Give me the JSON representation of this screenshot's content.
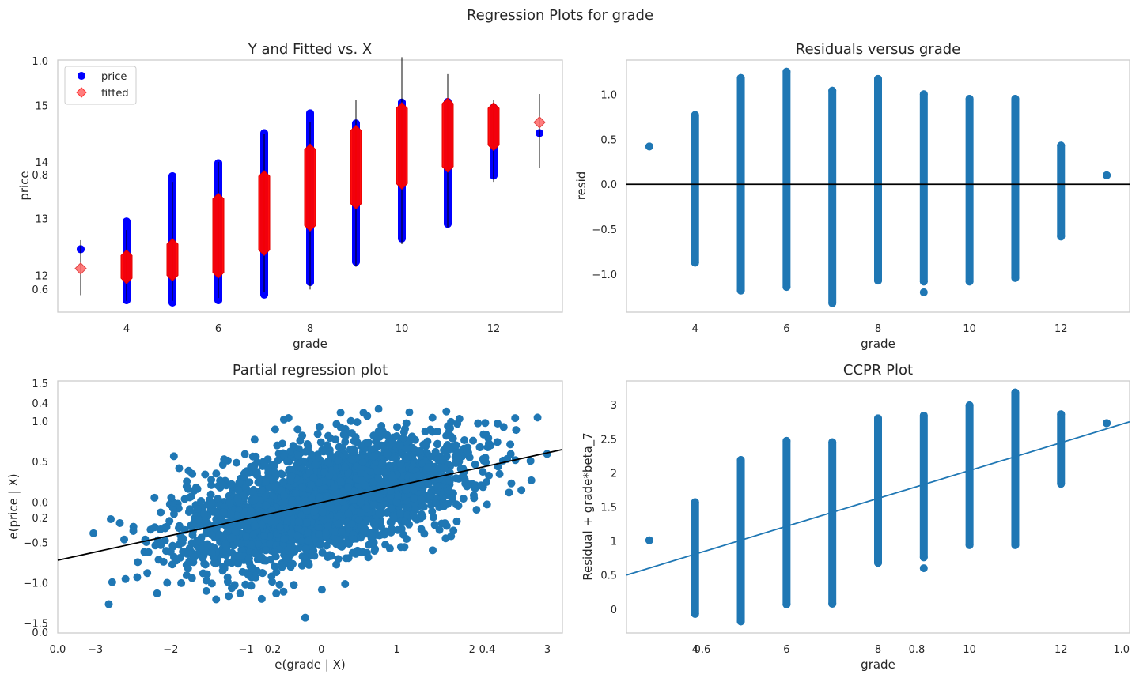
{
  "figure": {
    "suptitle": "Regression Plots for grade"
  },
  "chart_data": [
    {
      "id": "yfit",
      "type": "scatter",
      "title": "Y and Fitted vs. X",
      "xlabel": "grade",
      "ylabel": "price",
      "xlim": [
        2.5,
        13.5
      ],
      "ylim": [
        11.35,
        15.8
      ],
      "grid": false,
      "legend_position": "top-left",
      "x_ticks": [
        4,
        6,
        8,
        10,
        12
      ],
      "y_ticks": [
        12,
        13,
        14,
        15
      ],
      "overlay_ticks": [
        "0.6",
        "0.8",
        "1.0"
      ],
      "series": [
        {
          "name": "price",
          "marker": "circle",
          "color": "#0000ff",
          "x": [
            3,
            4,
            5,
            6,
            7,
            8,
            9,
            10,
            11,
            12,
            13
          ],
          "y_min": [
            12.46,
            11.56,
            11.52,
            11.56,
            11.66,
            11.88,
            12.24,
            12.65,
            12.91,
            13.76,
            14.51
          ],
          "y_max": [
            12.46,
            12.95,
            13.75,
            13.98,
            14.51,
            14.86,
            14.68,
            15.05,
            15.06,
            14.96,
            14.51
          ]
        },
        {
          "name": "fitted",
          "marker": "diamond",
          "color": "#ff6666",
          "x": [
            3,
            4,
            5,
            6,
            7,
            8,
            9,
            10,
            11,
            12,
            13
          ],
          "y_min": [
            12.12,
            11.95,
            12.0,
            12.05,
            12.45,
            12.88,
            13.27,
            13.62,
            13.92,
            14.3,
            14.7
          ],
          "y_max": [
            12.12,
            12.35,
            12.55,
            13.35,
            13.75,
            14.22,
            14.55,
            14.95,
            15.03,
            14.95,
            14.7
          ]
        }
      ],
      "intervals": {
        "x": [
          3,
          4,
          5,
          6,
          7,
          8,
          9,
          10,
          11,
          12,
          13
        ],
        "lower": [
          11.65,
          11.55,
          11.55,
          11.6,
          11.7,
          11.75,
          12.15,
          12.55,
          12.85,
          13.65,
          13.9
        ],
        "upper": [
          12.62,
          12.8,
          13.65,
          14.0,
          14.5,
          14.7,
          15.1,
          15.85,
          15.55,
          15.1,
          15.2
        ]
      }
    },
    {
      "id": "resid",
      "type": "scatter",
      "title": "Residuals versus grade",
      "xlabel": "grade",
      "ylabel": "resid",
      "xlim": [
        2.5,
        13.5
      ],
      "ylim": [
        -1.42,
        1.38
      ],
      "grid": false,
      "x_ticks": [
        4,
        6,
        8,
        10,
        12
      ],
      "y_ticks": [
        -1.0,
        -0.5,
        0.0,
        0.5,
        1.0
      ],
      "y_tick_labels": [
        "−1.0",
        "−0.5",
        "0.0",
        "0.5",
        "1.0"
      ],
      "hline": 0,
      "color": "#1f77b4",
      "x": [
        3,
        4,
        5,
        6,
        7,
        8,
        9,
        10,
        11,
        12,
        13
      ],
      "y_min": [
        0.42,
        -0.87,
        -1.18,
        -1.14,
        -1.32,
        -1.07,
        -1.08,
        -1.08,
        -1.04,
        -0.58,
        0.1
      ],
      "y_max": [
        0.42,
        0.77,
        1.18,
        1.25,
        1.04,
        1.17,
        1.0,
        0.95,
        0.95,
        0.43,
        0.1
      ],
      "outliers": [
        [
          9,
          -1.2
        ]
      ]
    },
    {
      "id": "partial",
      "type": "scatter",
      "title": "Partial regression plot",
      "xlabel": "e(grade | X)",
      "ylabel": "e(price | X)",
      "xlim": [
        -3.5,
        3.2
      ],
      "ylim": [
        -1.62,
        1.5
      ],
      "grid": false,
      "x_ticks": [
        -3,
        -2,
        -1,
        0,
        1,
        2,
        3
      ],
      "x_tick_labels": [
        "−3",
        "−2",
        "−1",
        "0",
        "1",
        "2",
        "3"
      ],
      "y_ticks": [
        -1.5,
        -1.0,
        -0.5,
        0.0,
        0.5,
        1.0
      ],
      "y_tick_labels": [
        "−1.5",
        "−1.0",
        "−0.5",
        "0.0",
        "0.5",
        "1.0"
      ],
      "overlay_x_ticks": [
        "0.0",
        "0.2",
        "0.4"
      ],
      "overlay_y_ticks": [
        "0.0",
        "0.2",
        "0.4",
        "1.5"
      ],
      "color": "#1f77b4",
      "fit_line": {
        "x": [
          -3.5,
          3.2
        ],
        "y": [
          -0.72,
          0.65
        ]
      },
      "cloud": {
        "center": [
          0,
          0
        ],
        "sd_x": 0.95,
        "sd_y": 0.4,
        "correlation": 0.52
      }
    },
    {
      "id": "ccpr",
      "type": "scatter",
      "title": "CCPR Plot",
      "xlabel": "grade",
      "ylabel": "Residual + grade*beta_7",
      "xlim": [
        2.5,
        13.5
      ],
      "ylim": [
        -0.35,
        3.35
      ],
      "grid": false,
      "x_ticks": [
        4,
        6,
        8,
        10,
        12
      ],
      "y_ticks": [
        0.0,
        0.5,
        1.0,
        1.5,
        2.0,
        2.5,
        3.0
      ],
      "overlay_x_ticks": [
        "0.6",
        "0.8",
        "1.0"
      ],
      "color": "#1f77b4",
      "fit_line": {
        "x": [
          2.5,
          13.5
        ],
        "y": [
          0.5,
          2.75
        ]
      },
      "x": [
        3,
        4,
        5,
        6,
        7,
        8,
        9,
        10,
        11,
        12,
        13
      ],
      "y_min": [
        1.01,
        -0.07,
        -0.18,
        0.07,
        0.08,
        0.68,
        0.76,
        0.94,
        0.94,
        1.84,
        2.73
      ],
      "y_max": [
        1.01,
        1.57,
        2.19,
        2.47,
        2.45,
        2.8,
        2.84,
        2.99,
        3.18,
        2.86,
        2.73
      ],
      "outliers": [
        [
          9,
          0.6
        ]
      ]
    }
  ]
}
